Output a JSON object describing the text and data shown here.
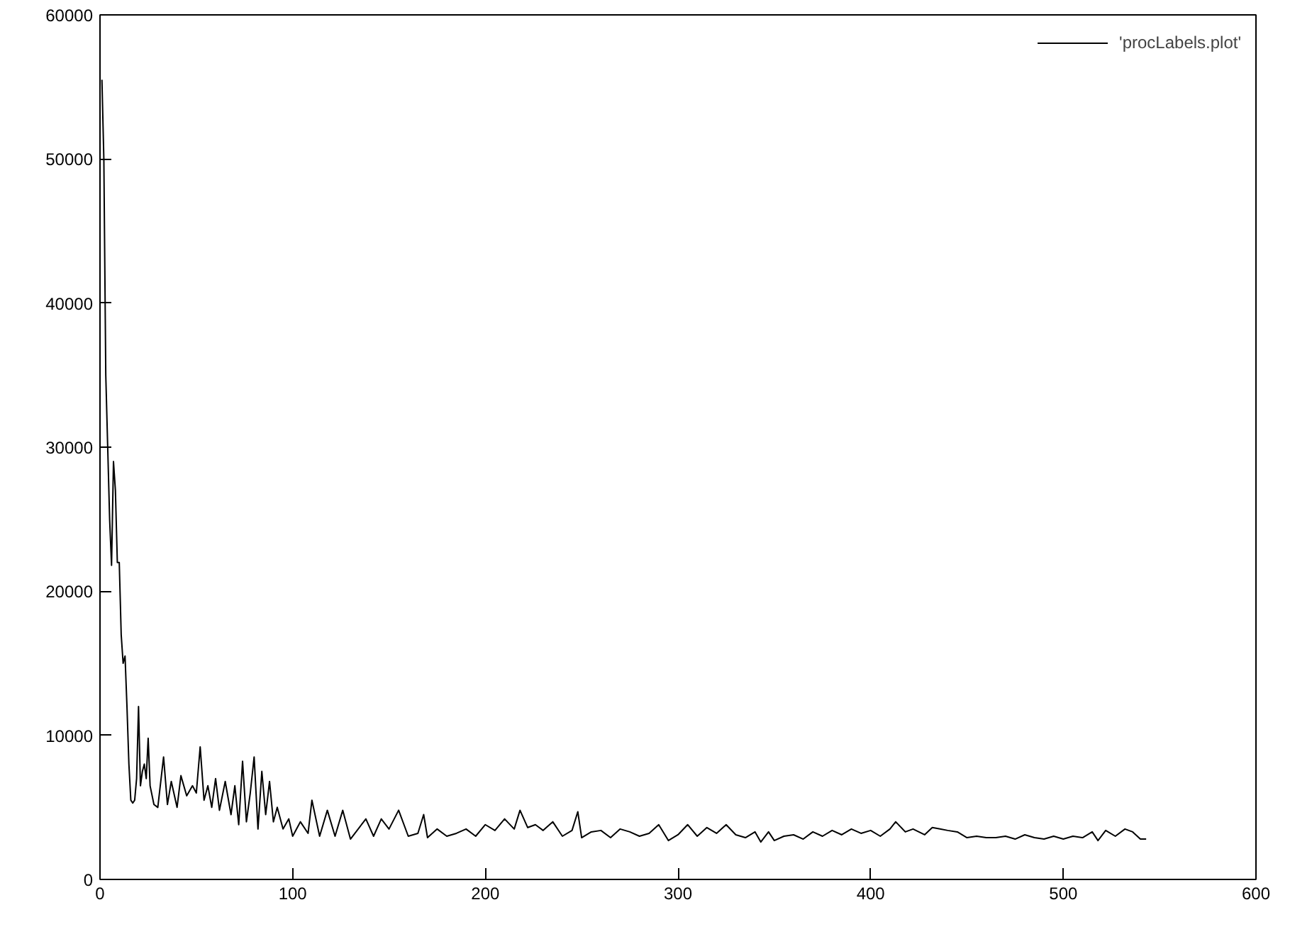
{
  "chart_data": {
    "type": "line",
    "xlim": [
      0,
      600
    ],
    "ylim": [
      0,
      60000
    ],
    "xticks": [
      0,
      100,
      200,
      300,
      400,
      500,
      600
    ],
    "yticks": [
      0,
      10000,
      20000,
      30000,
      40000,
      50000,
      60000
    ],
    "grid": false,
    "legend": "top right",
    "marker": "none",
    "line_style": "solid",
    "series": [
      {
        "name": "'procLabels.plot'",
        "color": "#000000",
        "x": [
          1,
          2,
          3,
          4,
          5,
          6,
          7,
          8,
          9,
          10,
          11,
          12,
          13,
          14,
          15,
          16,
          17,
          18,
          19,
          20,
          21,
          22,
          23,
          24,
          25,
          26,
          28,
          30,
          33,
          35,
          37,
          40,
          42,
          45,
          48,
          50,
          52,
          54,
          56,
          58,
          60,
          62,
          65,
          68,
          70,
          72,
          74,
          76,
          78,
          80,
          82,
          84,
          86,
          88,
          90,
          92,
          95,
          98,
          100,
          104,
          108,
          110,
          114,
          118,
          122,
          126,
          130,
          134,
          138,
          142,
          146,
          150,
          155,
          160,
          165,
          168,
          170,
          175,
          180,
          185,
          190,
          195,
          200,
          205,
          210,
          215,
          218,
          222,
          226,
          230,
          235,
          240,
          245,
          248,
          250,
          255,
          260,
          265,
          270,
          275,
          280,
          285,
          290,
          295,
          300,
          305,
          310,
          315,
          320,
          325,
          330,
          335,
          340,
          343,
          347,
          350,
          355,
          360,
          365,
          370,
          375,
          380,
          385,
          390,
          395,
          400,
          405,
          410,
          413,
          418,
          422,
          428,
          432,
          436,
          440,
          445,
          450,
          455,
          460,
          465,
          470,
          475,
          480,
          485,
          490,
          495,
          500,
          505,
          510,
          515,
          518,
          522,
          527,
          532,
          536,
          540,
          543
        ],
        "values": [
          55500,
          50000,
          35000,
          30000,
          25000,
          21800,
          29000,
          27000,
          22000,
          22000,
          17000,
          15000,
          15500,
          12000,
          8000,
          5500,
          5300,
          5500,
          7000,
          12000,
          6500,
          7500,
          8000,
          7000,
          9800,
          6500,
          5200,
          5000,
          8500,
          5200,
          6800,
          5000,
          7200,
          5800,
          6500,
          6000,
          9200,
          5500,
          6500,
          5000,
          7000,
          4800,
          6800,
          4500,
          6500,
          3800,
          8200,
          4000,
          6000,
          8500,
          3500,
          7500,
          4500,
          6800,
          4000,
          5000,
          3500,
          4200,
          3000,
          4000,
          3200,
          5500,
          3000,
          4800,
          3000,
          4800,
          2800,
          3500,
          4200,
          3000,
          4200,
          3500,
          4800,
          3000,
          3200,
          4500,
          2900,
          3500,
          3000,
          3200,
          3500,
          3000,
          3800,
          3400,
          4200,
          3500,
          4800,
          3600,
          3800,
          3400,
          4000,
          3000,
          3400,
          4700,
          2900,
          3300,
          3400,
          2900,
          3500,
          3300,
          3000,
          3200,
          3800,
          2700,
          3100,
          3800,
          3000,
          3600,
          3200,
          3800,
          3100,
          2900,
          3300,
          2600,
          3300,
          2700,
          3000,
          3100,
          2800,
          3300,
          3000,
          3400,
          3100,
          3500,
          3200,
          3400,
          3000,
          3500,
          4000,
          3300,
          3500,
          3100,
          3600,
          3500,
          3400,
          3300,
          2900,
          3000,
          2900,
          2900,
          3000,
          2800,
          3100,
          2900,
          2800,
          3000,
          2800,
          3000,
          2900,
          3300,
          2700,
          3400,
          3000,
          3500,
          3300,
          2800,
          2800
        ]
      }
    ]
  }
}
